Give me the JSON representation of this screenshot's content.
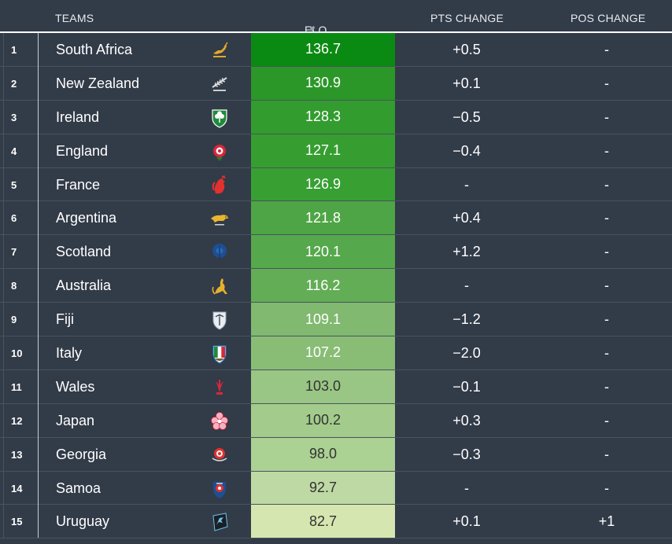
{
  "header": {
    "teams": "TEAMS",
    "elo_pts": "ELO PTS",
    "sort_indicator": "▼",
    "pts_change": "PTS CHANGE",
    "pos_change": "POS CHANGE"
  },
  "rows": [
    {
      "rank": "1",
      "team": "South Africa",
      "elo": "136.7",
      "pts_change": "+0.5",
      "pos_change": "-",
      "logo": "springbok-icon",
      "bg": "#0b8a13",
      "fg": "#ffffff"
    },
    {
      "rank": "2",
      "team": "New Zealand",
      "elo": "130.9",
      "pts_change": "+0.1",
      "pos_change": "-",
      "logo": "silver-fern-icon",
      "bg": "#2b9729",
      "fg": "#ffffff"
    },
    {
      "rank": "3",
      "team": "Ireland",
      "elo": "128.3",
      "pts_change": "−0.5",
      "pos_change": "-",
      "logo": "shamrock-icon",
      "bg": "#339c2f",
      "fg": "#ffffff"
    },
    {
      "rank": "4",
      "team": "England",
      "elo": "127.1",
      "pts_change": "−0.4",
      "pos_change": "-",
      "logo": "rose-icon",
      "bg": "#369e31",
      "fg": "#ffffff"
    },
    {
      "rank": "5",
      "team": "France",
      "elo": "126.9",
      "pts_change": "-",
      "pos_change": "-",
      "logo": "rooster-icon",
      "bg": "#389f33",
      "fg": "#ffffff"
    },
    {
      "rank": "6",
      "team": "Argentina",
      "elo": "121.8",
      "pts_change": "+0.4",
      "pos_change": "-",
      "logo": "puma-icon",
      "bg": "#4ea545",
      "fg": "#ffffff"
    },
    {
      "rank": "7",
      "team": "Scotland",
      "elo": "120.1",
      "pts_change": "+1.2",
      "pos_change": "-",
      "logo": "thistle-icon",
      "bg": "#55a84b",
      "fg": "#ffffff"
    },
    {
      "rank": "8",
      "team": "Australia",
      "elo": "116.2",
      "pts_change": "-",
      "pos_change": "-",
      "logo": "wallaby-icon",
      "bg": "#63ad56",
      "fg": "#ffffff"
    },
    {
      "rank": "9",
      "team": "Fiji",
      "elo": "109.1",
      "pts_change": "−1.2",
      "pos_change": "-",
      "logo": "fiji-palm-icon",
      "bg": "#80b96f",
      "fg": "#ffffff"
    },
    {
      "rank": "10",
      "team": "Italy",
      "elo": "107.2",
      "pts_change": "−2.0",
      "pos_change": "-",
      "logo": "italy-shield-icon",
      "bg": "#89bd76",
      "fg": "#ffffff"
    },
    {
      "rank": "11",
      "team": "Wales",
      "elo": "103.0",
      "pts_change": "−0.1",
      "pos_change": "-",
      "logo": "feathers-icon",
      "bg": "#99c684",
      "fg": "#333333"
    },
    {
      "rank": "12",
      "team": "Japan",
      "elo": "100.2",
      "pts_change": "+0.3",
      "pos_change": "-",
      "logo": "cherry-blossom-icon",
      "bg": "#a3cc8c",
      "fg": "#333333"
    },
    {
      "rank": "13",
      "team": "Georgia",
      "elo": "98.0",
      "pts_change": "−0.3",
      "pos_change": "-",
      "logo": "georgia-rose-icon",
      "bg": "#abd193",
      "fg": "#333333"
    },
    {
      "rank": "14",
      "team": "Samoa",
      "elo": "92.7",
      "pts_change": "-",
      "pos_change": "-",
      "logo": "samoa-crest-icon",
      "bg": "#bed9a3",
      "fg": "#333333"
    },
    {
      "rank": "15",
      "team": "Uruguay",
      "elo": "82.7",
      "pts_change": "+0.1",
      "pos_change": "+1",
      "logo": "teros-icon",
      "bg": "#d6e6b0",
      "fg": "#333333"
    }
  ]
}
